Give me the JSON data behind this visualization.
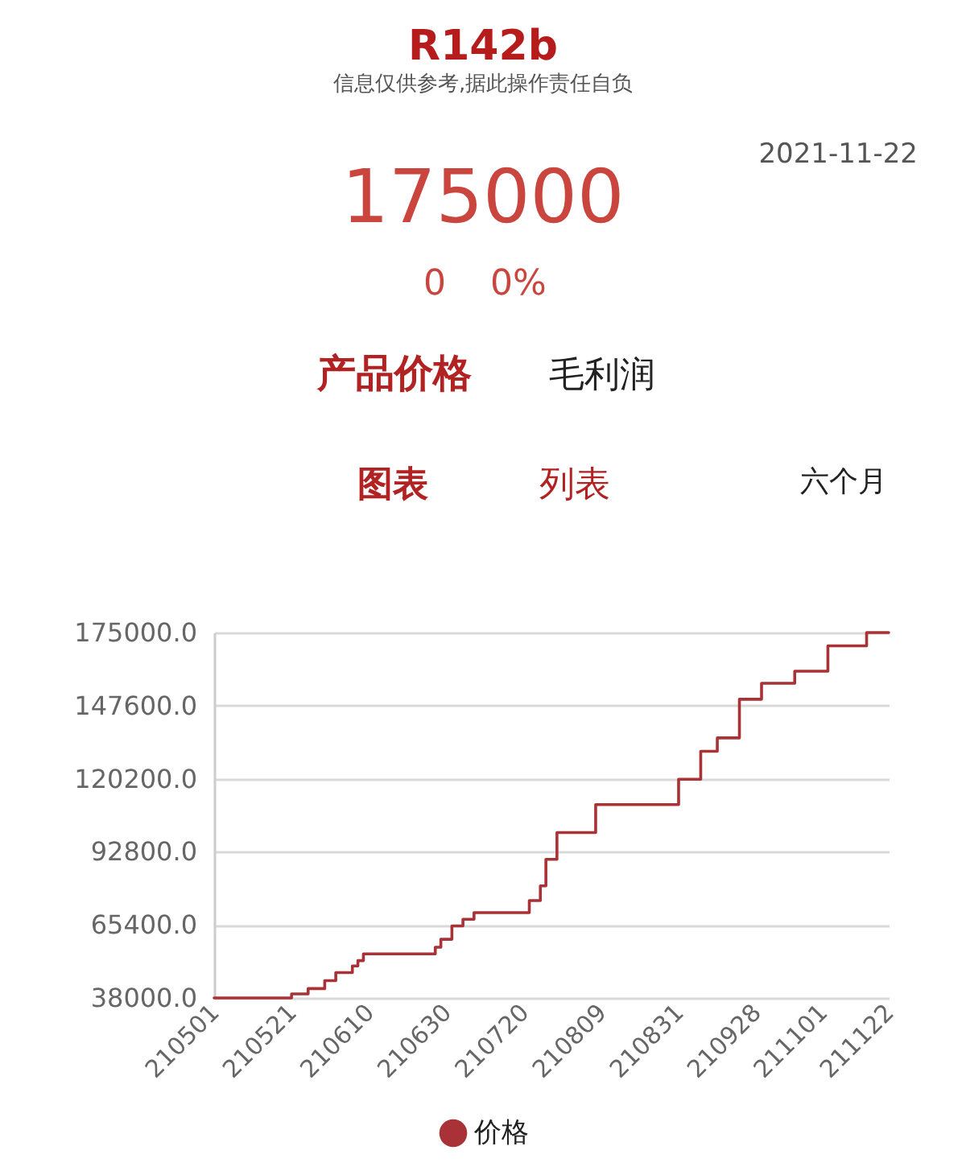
{
  "chart_data": {
    "type": "step",
    "title": "R142b",
    "subtitle": "信息仅供参考,据此操作责任自负",
    "annotations": [
      "2021-11-22",
      "175000",
      "0",
      "0%",
      "产品价格",
      "毛利润",
      "图表",
      "列表",
      "六个月"
    ],
    "categories": [
      "210501",
      null,
      null,
      null,
      null,
      null,
      null,
      null,
      null,
      null,
      null,
      null,
      null,
      null,
      "210521",
      null,
      null,
      null,
      null,
      null,
      null,
      null,
      null,
      null,
      null,
      null,
      null,
      null,
      "210610",
      null,
      null,
      null,
      null,
      null,
      null,
      null,
      null,
      null,
      null,
      null,
      null,
      null,
      "210630",
      null,
      null,
      null,
      null,
      null,
      null,
      null,
      null,
      null,
      null,
      null,
      null,
      null,
      "210720",
      null,
      null,
      null,
      null,
      null,
      null,
      null,
      null,
      null,
      null,
      null,
      null,
      null,
      "210809",
      null,
      null,
      null,
      null,
      null,
      null,
      null,
      null,
      null,
      null,
      null,
      null,
      null,
      "210831",
      null,
      null,
      null,
      null,
      null,
      null,
      null,
      null,
      null,
      null,
      null,
      null,
      null,
      "210928",
      null,
      null,
      null,
      null,
      null,
      null,
      null,
      null,
      null,
      null,
      null,
      "211101",
      null,
      null,
      null,
      null,
      null,
      null,
      null,
      null,
      null,
      null,
      null,
      "211122"
    ],
    "series": [
      {
        "name": "价格",
        "color": "#a83236",
        "values": [
          38000,
          38000,
          38000,
          38000,
          38000,
          38000,
          38000,
          38000,
          38000,
          38000,
          38000,
          38000,
          38000,
          38000,
          39500,
          39500,
          39500,
          41500,
          41500,
          41500,
          44500,
          44500,
          47500,
          47500,
          47500,
          50000,
          52000,
          54500,
          54500,
          54500,
          54500,
          54500,
          54500,
          54500,
          54500,
          54500,
          54500,
          54500,
          54500,
          54500,
          57000,
          60000,
          60000,
          65000,
          65000,
          67500,
          67500,
          70000,
          70000,
          70000,
          70000,
          70000,
          70000,
          70000,
          70000,
          70000,
          70000,
          74500,
          74500,
          80000,
          90000,
          90000,
          100000,
          100000,
          100000,
          100000,
          100000,
          100000,
          100000,
          110500,
          110500,
          110500,
          110500,
          110500,
          110500,
          110500,
          110500,
          110500,
          110500,
          110500,
          110500,
          110500,
          110500,
          110500,
          120000,
          120000,
          120000,
          120000,
          130500,
          130500,
          130500,
          135500,
          135500,
          135500,
          135500,
          150000,
          150000,
          150000,
          150000,
          156000,
          156000,
          156000,
          156000,
          156000,
          156000,
          160500,
          160500,
          160500,
          160500,
          160500,
          160500,
          170000,
          170000,
          170000,
          170000,
          170000,
          170000,
          170000,
          175000,
          175000,
          175000,
          175000,
          175000
        ]
      }
    ],
    "ylim": [
      38000,
      175000
    ],
    "yticks": [
      {
        "value": 38000,
        "label": "38000.0"
      },
      {
        "value": 65400,
        "label": "65400.0"
      },
      {
        "value": 92800,
        "label": "92800.0"
      },
      {
        "value": 120200,
        "label": "120200.0"
      },
      {
        "value": 147600,
        "label": "147600.0"
      },
      {
        "value": 175000,
        "label": "175000.0"
      }
    ],
    "grid": "y",
    "legend": "bottom"
  }
}
